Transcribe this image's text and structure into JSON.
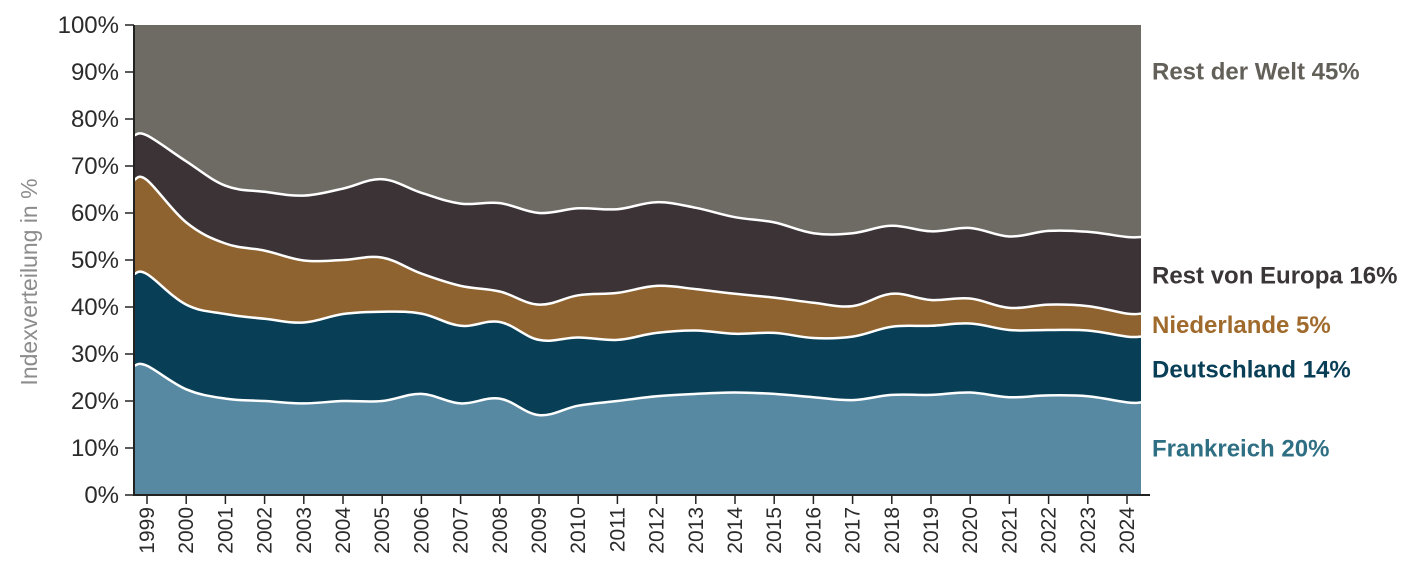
{
  "chart_data": {
    "type": "area",
    "stacked": true,
    "ylabel": "Indexverteilung in %",
    "xlabel": "",
    "ylim": [
      0,
      100
    ],
    "yticks": [
      "0%",
      "10%",
      "20%",
      "30%",
      "40%",
      "50%",
      "60%",
      "70%",
      "80%",
      "90%",
      "100%"
    ],
    "categories": [
      "1999",
      "2000",
      "2001",
      "2002",
      "2003",
      "2004",
      "2005",
      "2006",
      "2007",
      "2008",
      "2009",
      "2010",
      "2011",
      "2012",
      "2013",
      "2014",
      "2015",
      "2016",
      "2017",
      "2018",
      "2019",
      "2020",
      "2021",
      "2022",
      "2023",
      "2024"
    ],
    "series": [
      {
        "name": "Frankreich",
        "label": "Frankreich 20%",
        "color": "#5889a2",
        "label_color": "#2f6f83",
        "values": [
          27.5,
          22.5,
          20.5,
          20,
          19.5,
          20,
          20,
          21.5,
          19.5,
          20.5,
          17,
          19,
          20,
          21,
          21.5,
          21.8,
          21.5,
          20.8,
          20.2,
          21.3,
          21.3,
          21.8,
          20.8,
          21.2,
          21,
          19.7
        ]
      },
      {
        "name": "Deutschland",
        "label": "Deutschland 14%",
        "color": "#083f57",
        "label_color": "#083f57",
        "values": [
          19.5,
          18,
          18,
          17.5,
          17.2,
          18.5,
          19,
          17.1,
          16.5,
          16.3,
          16,
          14.5,
          13,
          13.5,
          13.5,
          12.5,
          13,
          12.6,
          13.5,
          14.5,
          14.7,
          14.7,
          14.3,
          13.9,
          14,
          14
        ]
      },
      {
        "name": "Niederlande",
        "label": "Niederlande 5%",
        "color": "#8e632f",
        "label_color": "#a06a2c",
        "values": [
          20,
          17.5,
          15,
          14.5,
          13.2,
          11.5,
          11.5,
          8.5,
          8.5,
          6.5,
          7.5,
          9,
          10,
          10,
          8.8,
          8.5,
          7.5,
          7.5,
          6.5,
          7,
          5.5,
          5.3,
          4.7,
          5.4,
          5.2,
          4.9
        ]
      },
      {
        "name": "Rest von Europa",
        "label": "Rest von Europa 16%",
        "color": "#3b3335",
        "label_color": "#3a3536",
        "values": [
          9.5,
          13,
          12.3,
          12.5,
          13.8,
          15.2,
          16.7,
          17.2,
          17.5,
          18.8,
          19.5,
          18.5,
          17.8,
          17.8,
          17.3,
          16.3,
          16,
          14.8,
          15.5,
          14.5,
          14.6,
          15,
          15.2,
          15.7,
          15.8,
          16.3
        ]
      },
      {
        "name": "Rest der Welt",
        "label": "Rest der Welt  45%",
        "color": "#6e6a64",
        "label_color": "#636059",
        "values": [
          23.5,
          29,
          34.2,
          35.5,
          36.3,
          34.8,
          32.8,
          35.7,
          38,
          37.9,
          40,
          39,
          39.2,
          37.7,
          38.9,
          40.9,
          42,
          44.3,
          44.3,
          42.7,
          43.9,
          43.2,
          45,
          43.8,
          44,
          45.1
        ]
      }
    ],
    "grid": false,
    "legend": "right"
  }
}
